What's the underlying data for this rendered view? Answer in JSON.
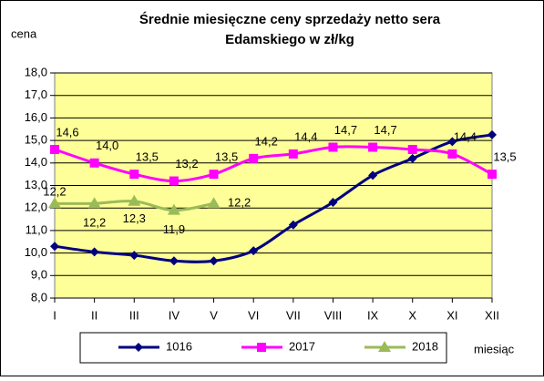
{
  "chart_data": {
    "type": "line",
    "title": "Średnie miesięczne ceny sprzedaży netto sera Edamskiego w zł/kg",
    "y_label": "cena",
    "x_label": "miesiąc",
    "categories": [
      "I",
      "II",
      "III",
      "IV",
      "V",
      "VI",
      "VII",
      "VIII",
      "IX",
      "X",
      "XI",
      "XII"
    ],
    "ylim": [
      8,
      18
    ],
    "yticks": [
      {
        "value": 8,
        "label": "8,0"
      },
      {
        "value": 9,
        "label": "9,0"
      },
      {
        "value": 10,
        "label": "10,0"
      },
      {
        "value": 11,
        "label": "11,0"
      },
      {
        "value": 12,
        "label": "12,0"
      },
      {
        "value": 13,
        "label": "13,0"
      },
      {
        "value": 14,
        "label": "14,0"
      },
      {
        "value": 15,
        "label": "15,0"
      },
      {
        "value": 16,
        "label": "16,0"
      },
      {
        "value": 17,
        "label": "17,0"
      },
      {
        "value": 18,
        "label": "18,0"
      }
    ],
    "grid": true,
    "series": [
      {
        "name": "1016",
        "color": "#000080",
        "marker": "diamond",
        "values": [
          10.3,
          10.05,
          9.9,
          9.65,
          9.65,
          10.1,
          11.25,
          12.25,
          13.45,
          14.2,
          14.95,
          15.25
        ]
      },
      {
        "name": "2017",
        "color": "#FF00FF",
        "marker": "square",
        "values": [
          14.6,
          14.0,
          13.5,
          13.2,
          13.5,
          14.2,
          14.4,
          14.7,
          14.7,
          14.6,
          14.4,
          13.5
        ],
        "value_labels": [
          "14,6",
          "14,0",
          "13,5",
          "13,2",
          "13,5",
          "14,2",
          "14,4",
          "14,7",
          "14,7",
          null,
          "14,4",
          "13,5"
        ]
      },
      {
        "name": "2018",
        "color": "#9BBB59",
        "marker": "triangle",
        "values": [
          12.2,
          12.2,
          12.3,
          11.9,
          12.2,
          null,
          null,
          null,
          null,
          null,
          null,
          null
        ],
        "value_labels": [
          "12,2",
          "12,2",
          "12,3",
          "11,9",
          "12,2",
          null,
          null,
          null,
          null,
          null,
          null,
          null
        ]
      }
    ]
  }
}
